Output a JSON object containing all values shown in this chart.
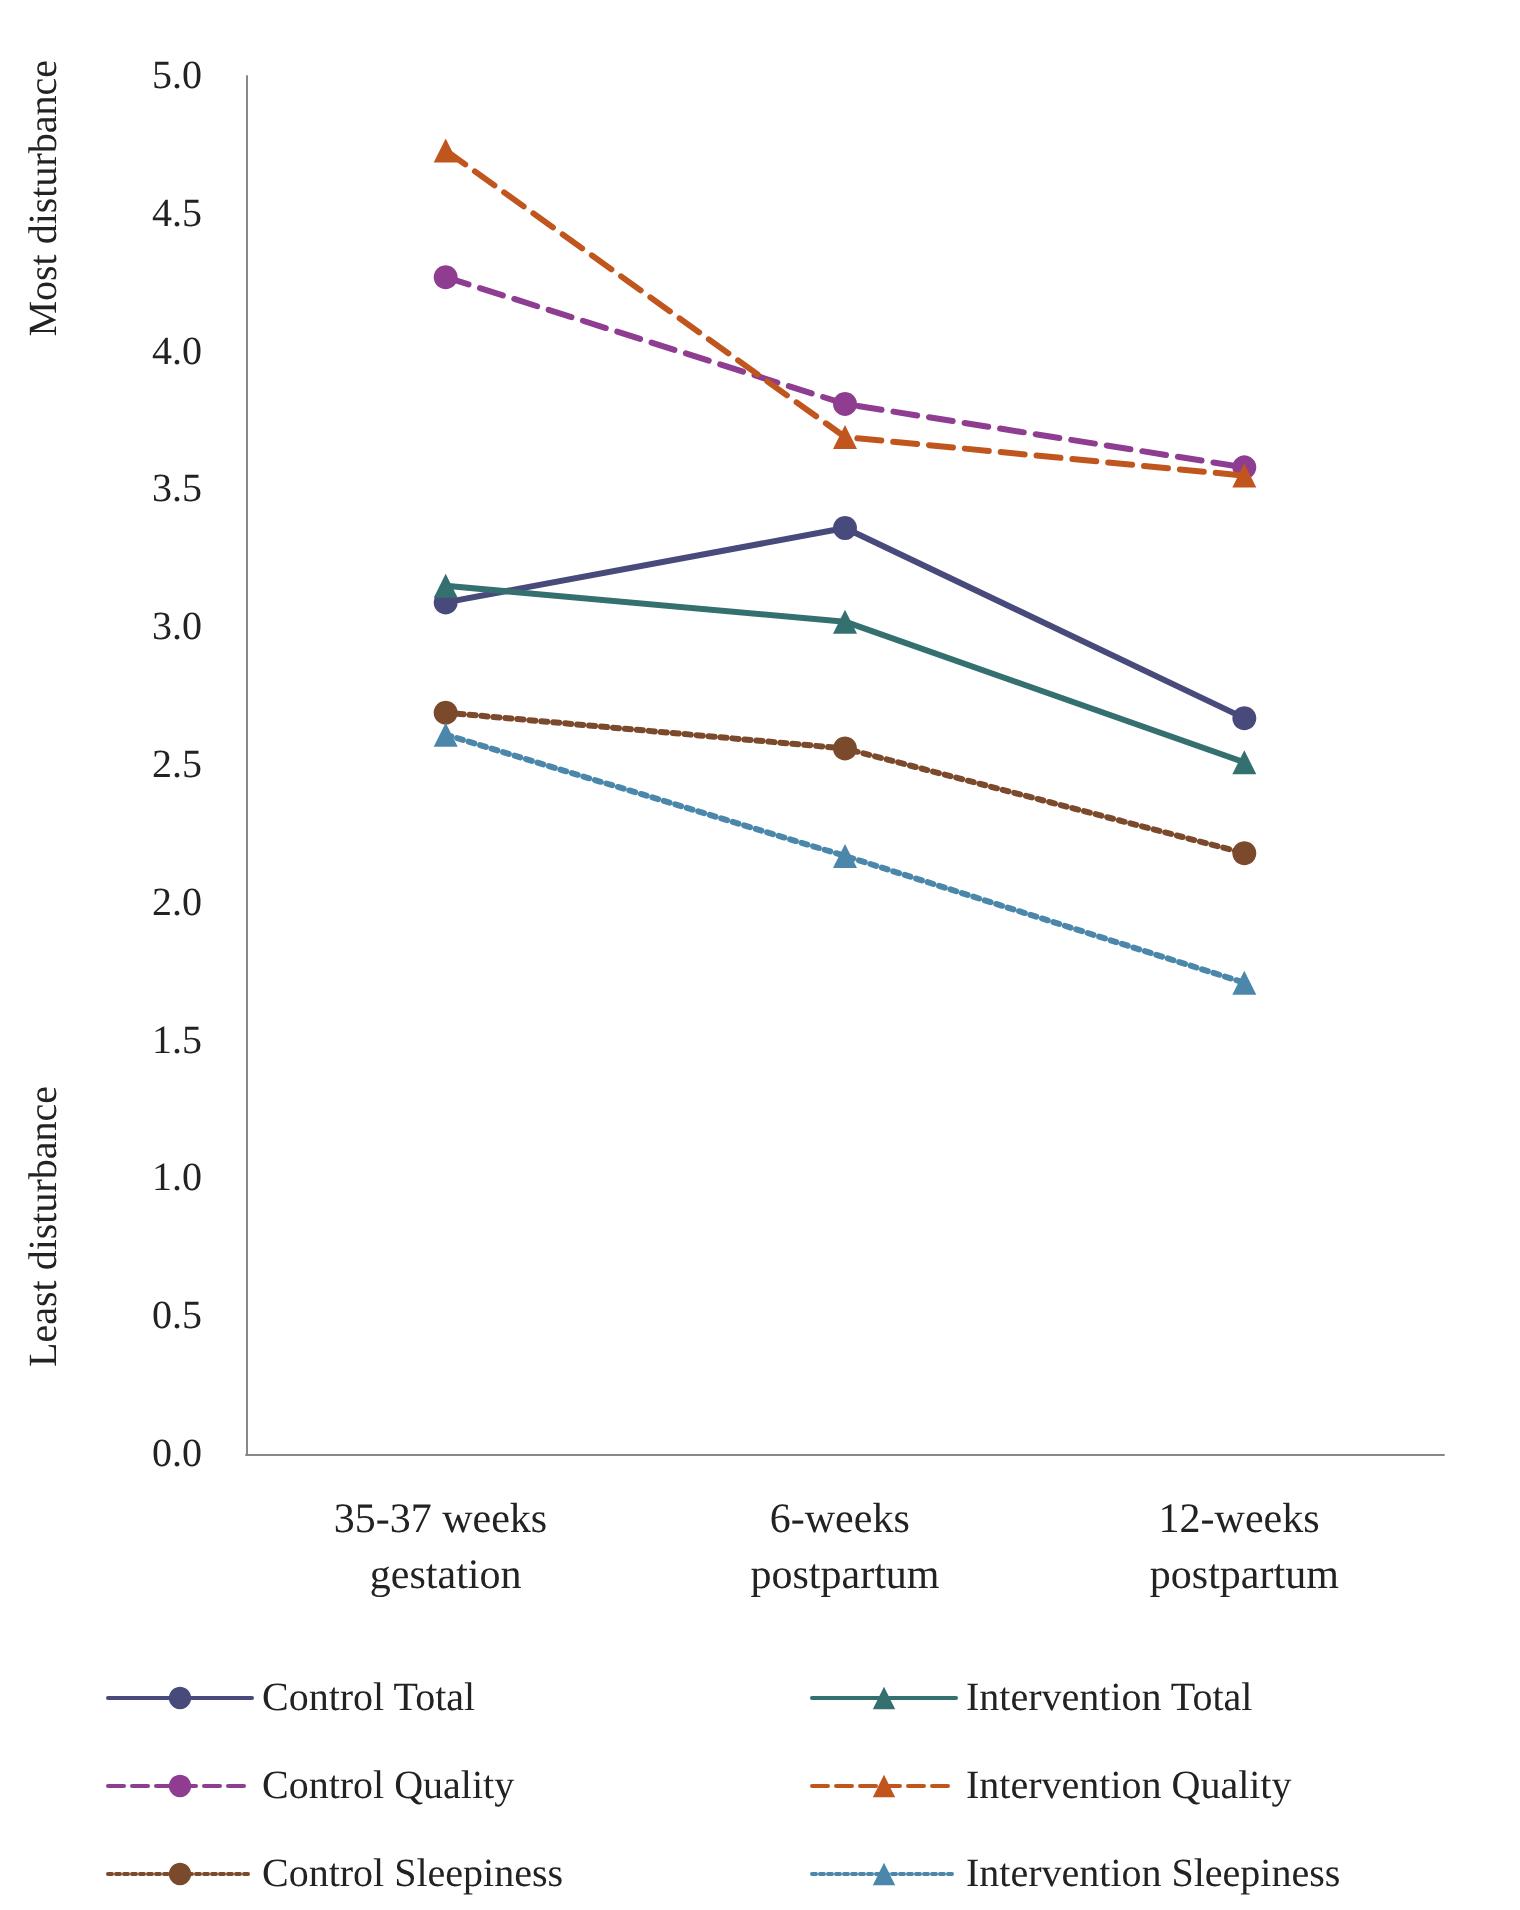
{
  "chart_data": {
    "type": "line",
    "ylabel": "Most disturbance",
    "annotations": [
      "Least disturbance"
    ],
    "categories": [
      "35-37 weeks gestation",
      "6-weeks postpartum",
      "12-weeks postpartum"
    ],
    "ylim": [
      0,
      5
    ],
    "yticks": [
      {
        "value": 0,
        "label": "0.0"
      },
      {
        "value": 0.5,
        "label": "0.5"
      },
      {
        "value": 1,
        "label": "1.0"
      },
      {
        "value": 1.5,
        "label": "1.5"
      },
      {
        "value": 2,
        "label": "2.0"
      },
      {
        "value": 2.5,
        "label": "2.5"
      },
      {
        "value": 3,
        "label": "3.0"
      },
      {
        "value": 3.5,
        "label": "3.5"
      },
      {
        "value": 4,
        "label": "4.0"
      },
      {
        "value": 4.5,
        "label": "4.5"
      },
      {
        "value": 5,
        "label": "5.0"
      }
    ],
    "grid": false,
    "legend": "bottom",
    "series": [
      {
        "name": "Control Total",
        "color": "#484a7c",
        "marker": "circle",
        "line_style": "solid",
        "values": [
          3.09,
          3.36,
          2.67
        ]
      },
      {
        "name": "Intervention Total",
        "color": "#357070",
        "marker": "triangle",
        "line_style": "solid",
        "values": [
          3.15,
          3.02,
          2.51
        ]
      },
      {
        "name": "Control Quality",
        "color": "#8e3d91",
        "marker": "circle",
        "line_style": "dashed",
        "values": [
          4.27,
          3.81,
          3.58
        ]
      },
      {
        "name": "Intervention Quality",
        "color": "#c0561d",
        "marker": "triangle",
        "line_style": "dashed",
        "values": [
          4.73,
          3.69,
          3.55
        ]
      },
      {
        "name": "Control Sleepiness",
        "color": "#7b4a2c",
        "marker": "circle",
        "line_style": "dotted",
        "values": [
          2.69,
          2.56,
          2.18
        ]
      },
      {
        "name": "Intervention Sleepiness",
        "color": "#4a87aa",
        "marker": "triangle",
        "line_style": "dotted",
        "values": [
          2.61,
          2.17,
          1.71
        ]
      }
    ]
  }
}
